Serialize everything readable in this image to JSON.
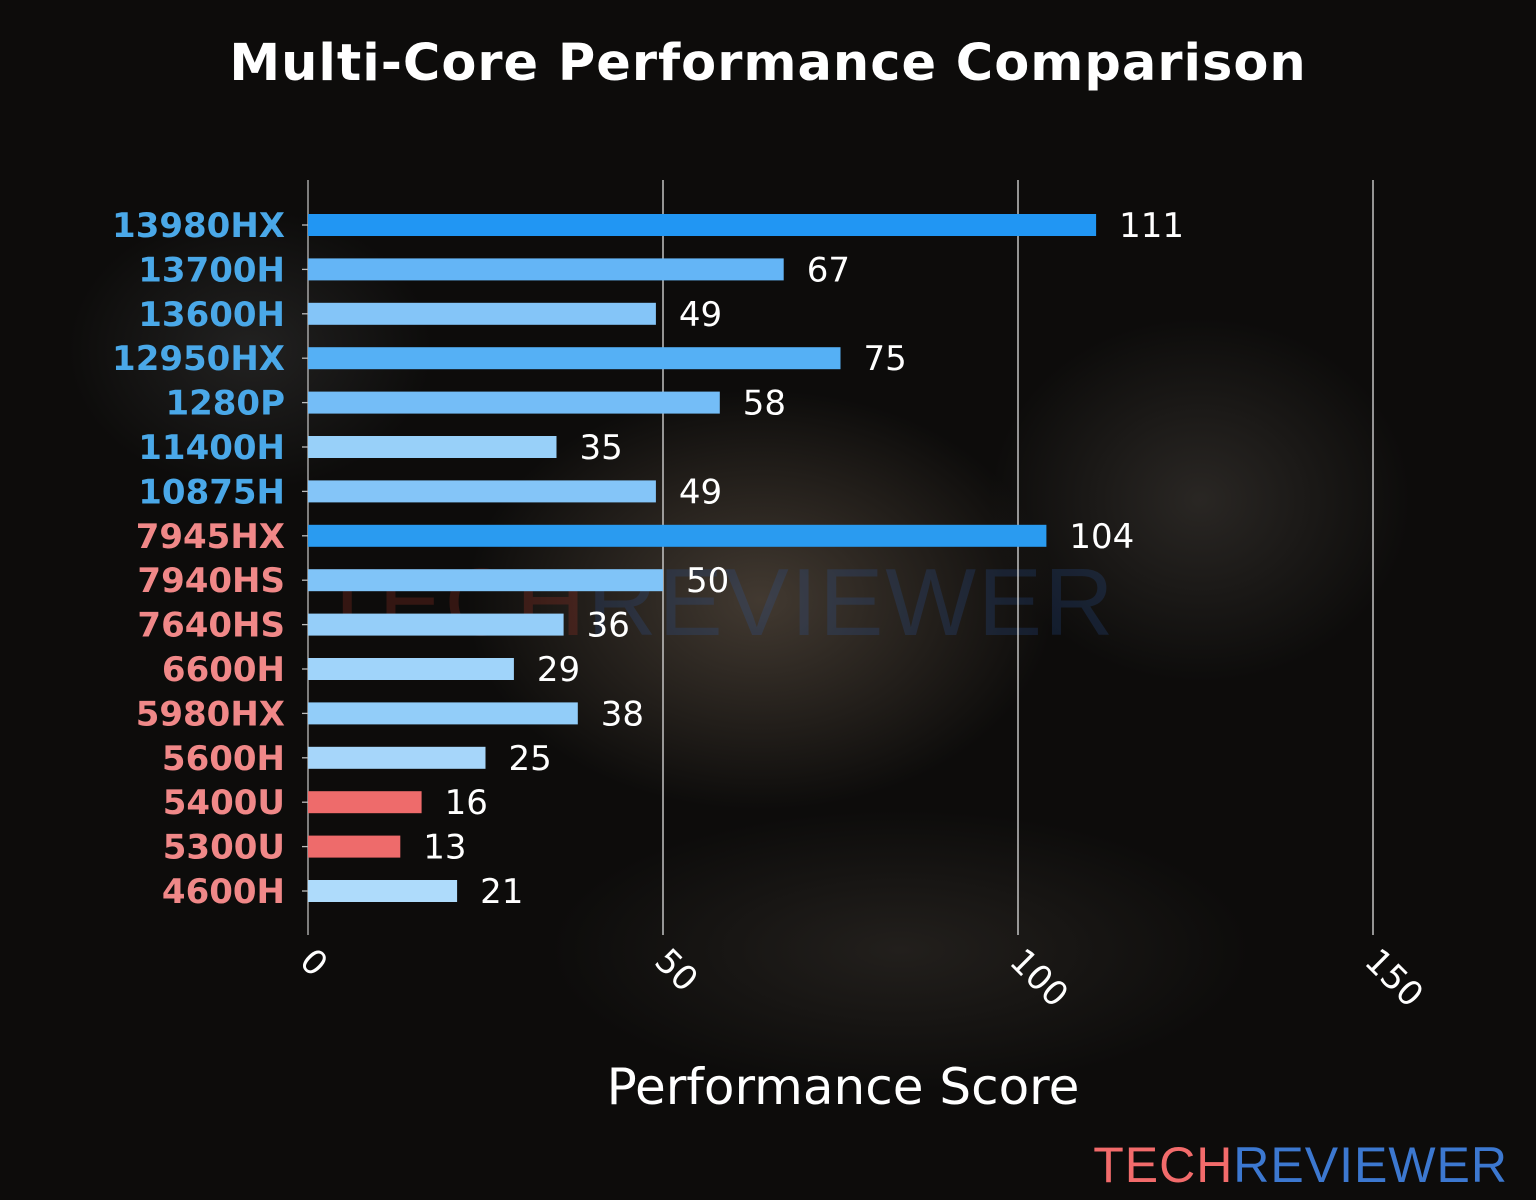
{
  "chart_data": {
    "type": "bar",
    "orientation": "horizontal",
    "title": "Multi-Core Performance Comparison",
    "xlabel": "Performance Score",
    "ylabel": "",
    "xlim": [
      0,
      150
    ],
    "xticks": [
      "0",
      "50",
      "100",
      "150"
    ],
    "grid": "vertical",
    "categories": [
      "13980HX",
      "13700H",
      "13600H",
      "12950HX",
      "1280P",
      "11400H",
      "10875H",
      "7945HX",
      "7940HS",
      "7640HS",
      "6600H",
      "5980HX",
      "5600H",
      "5400U",
      "5300U",
      "4600H"
    ],
    "values": [
      111,
      67,
      49,
      75,
      58,
      35,
      49,
      104,
      50,
      36,
      29,
      38,
      25,
      16,
      13,
      21
    ],
    "label_colors": [
      "#4aa8e8",
      "#4aa8e8",
      "#4aa8e8",
      "#4aa8e8",
      "#4aa8e8",
      "#4aa8e8",
      "#4aa8e8",
      "#f08888",
      "#f08888",
      "#f08888",
      "#f08888",
      "#f08888",
      "#f08888",
      "#f08888",
      "#f08888",
      "#f08888"
    ],
    "bar_colors": [
      "#2196f3",
      "#64b5f6",
      "#84c5f8",
      "#55b0f5",
      "#74bdf7",
      "#98d0f9",
      "#84c5f8",
      "#2a9bf0",
      "#80c4f8",
      "#95cef9",
      "#a0d4fa",
      "#92cdf9",
      "#a6d6fa",
      "#ee6b6b",
      "#ee6b6b",
      "#aedbfb"
    ]
  },
  "watermark": {
    "part1": "TECH",
    "part2": "REVIEWER"
  },
  "logo": {
    "part1": "TECH",
    "part2": "REVIEWER"
  }
}
